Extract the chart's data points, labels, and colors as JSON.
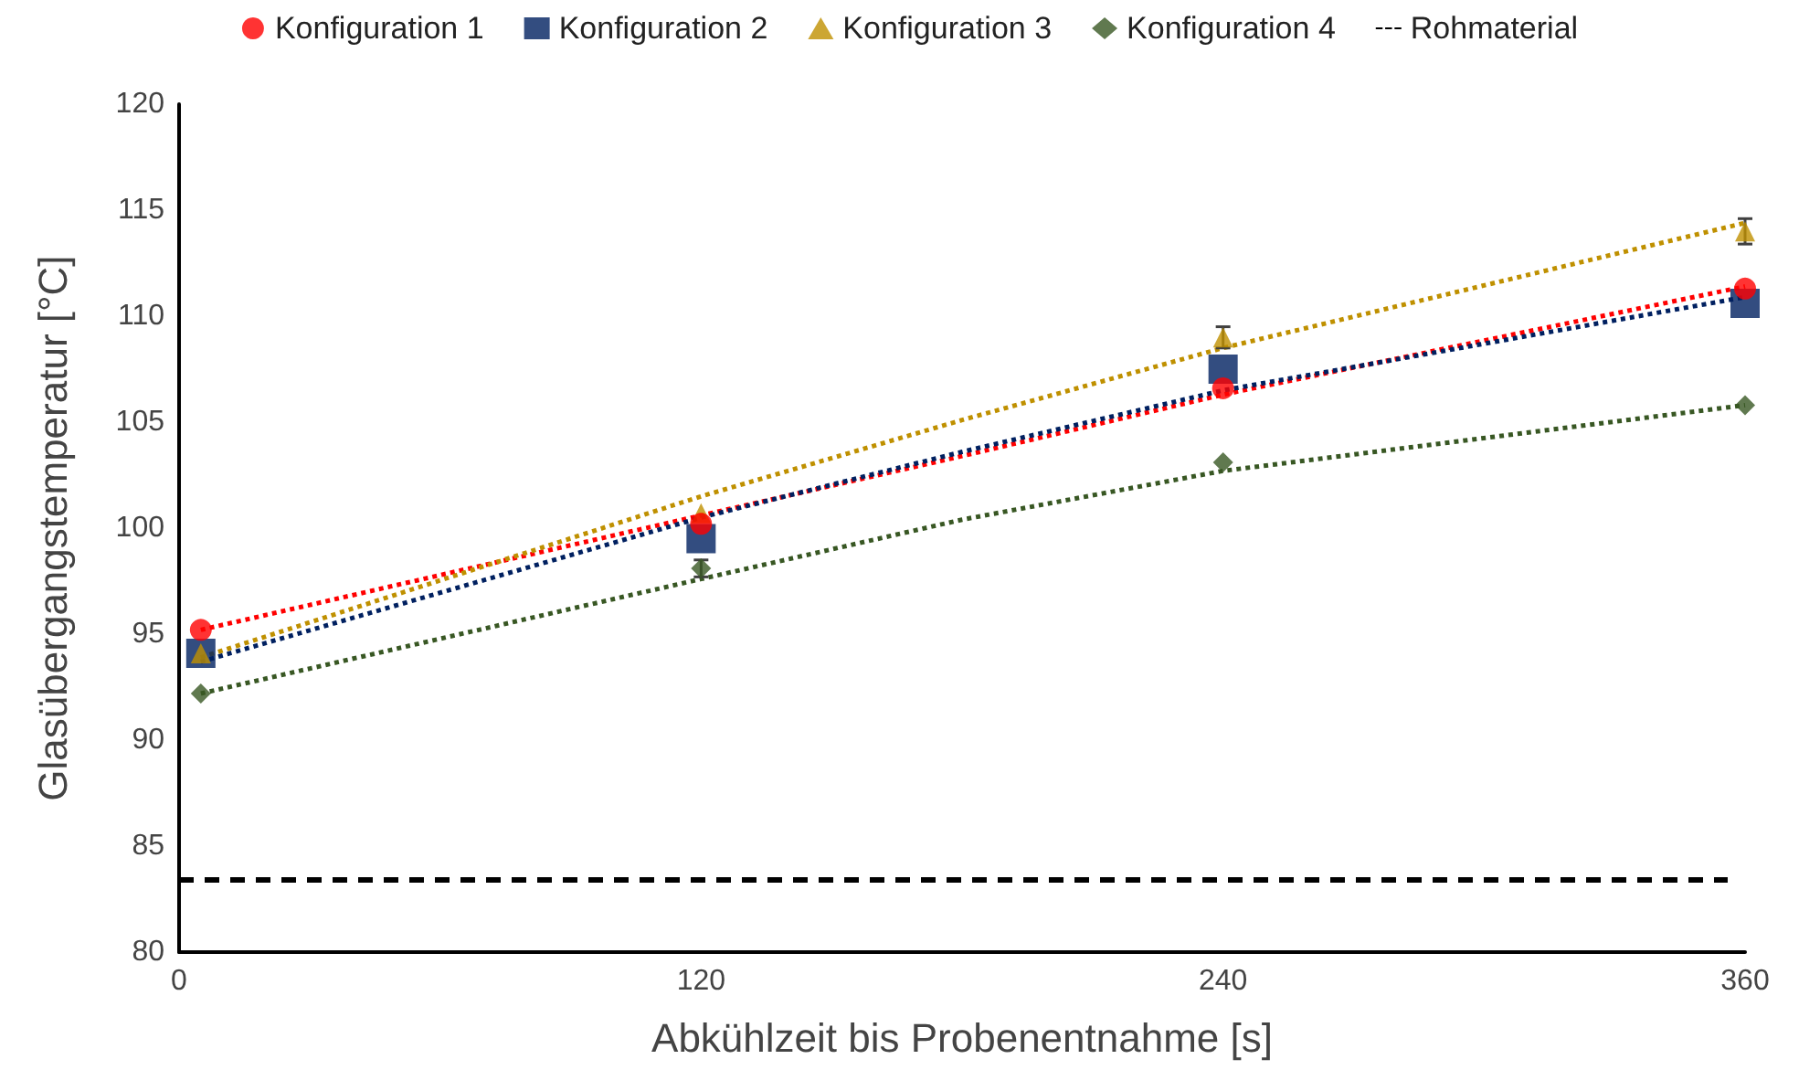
{
  "chart_data": {
    "type": "scatter",
    "xlabel": "Abkühlzeit bis Probenentnahme [s]",
    "ylabel": "Glasübergangstemperatur [°C]",
    "xlim": [
      0,
      360
    ],
    "xticks": [
      0,
      120,
      240,
      360
    ],
    "ylim": [
      80,
      120
    ],
    "yticks": [
      80,
      85,
      90,
      95,
      100,
      105,
      110,
      115,
      120
    ],
    "grid": false,
    "legend": "top",
    "series": [
      {
        "name": "Konfiguration 1",
        "color": "#ff0000",
        "marker": "circle",
        "x": [
          5,
          120,
          240,
          360
        ],
        "values": [
          95.2,
          100.2,
          106.6,
          111.3
        ]
      },
      {
        "name": "Konfiguration 2",
        "color": "#002060",
        "marker": "square",
        "x": [
          5,
          120,
          240,
          360
        ],
        "values": [
          94.1,
          99.5,
          107.5,
          110.6
        ]
      },
      {
        "name": "Konfiguration 3",
        "color": "#bf9000",
        "marker": "triangle",
        "x": [
          5,
          120,
          240,
          360
        ],
        "values": [
          94.1,
          100.7,
          109.0,
          114.0
        ],
        "errors": [
          null,
          null,
          0.5,
          0.6
        ]
      },
      {
        "name": "Konfiguration 4",
        "color": "#385723",
        "marker": "diamond",
        "x": [
          5,
          120,
          240,
          360
        ],
        "values": [
          92.2,
          98.1,
          103.1,
          105.8
        ],
        "errors": [
          null,
          0.4,
          null,
          null
        ]
      },
      {
        "name": "Rohmaterial",
        "type": "line",
        "color": "#000000",
        "marker": "none",
        "line_style": "dashed",
        "x": [
          0,
          356
        ],
        "values": [
          83.4,
          83.4
        ]
      },
      {
        "type": "line",
        "color": "#ff0000",
        "marker": "none",
        "line_style": "dotted",
        "x": [
          5,
          120,
          180,
          240,
          360
        ],
        "values": [
          95.2,
          100.6,
          103.4,
          106.3,
          111.4
        ]
      },
      {
        "type": "line",
        "color": "#002060",
        "marker": "none",
        "line_style": "dotted",
        "x": [
          5,
          120,
          180,
          240,
          360
        ],
        "values": [
          93.7,
          100.5,
          103.6,
          106.5,
          110.9
        ]
      },
      {
        "type": "line",
        "color": "#bf9000",
        "marker": "none",
        "line_style": "dotted",
        "x": [
          5,
          120,
          180,
          240,
          360
        ],
        "values": [
          93.9,
          101.5,
          105.1,
          108.5,
          114.4
        ]
      },
      {
        "type": "line",
        "color": "#385723",
        "marker": "none",
        "line_style": "dotted",
        "x": [
          5,
          120,
          180,
          240,
          360
        ],
        "values": [
          92.2,
          97.6,
          100.4,
          102.7,
          105.8
        ]
      }
    ]
  }
}
